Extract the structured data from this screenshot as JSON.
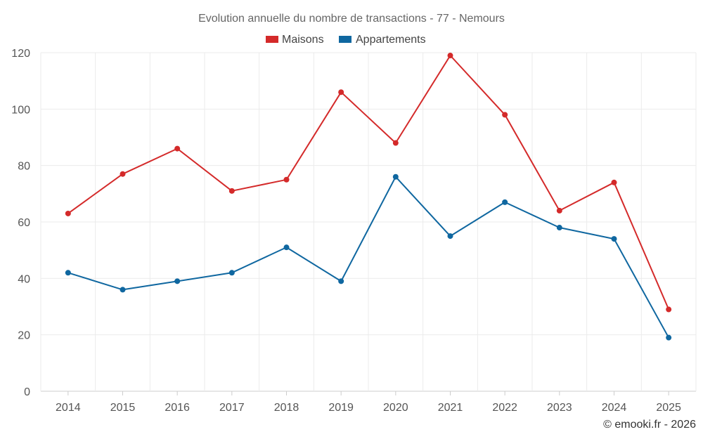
{
  "chart_data": {
    "type": "line",
    "title": "Evolution annuelle du nombre de transactions - 77 - Nemours",
    "categories": [
      "2014",
      "2015",
      "2016",
      "2017",
      "2018",
      "2019",
      "2020",
      "2021",
      "2022",
      "2023",
      "2024",
      "2025"
    ],
    "series": [
      {
        "name": "Maisons",
        "color": "#d42a2a",
        "values": [
          63,
          77,
          86,
          71,
          75,
          106,
          88,
          119,
          98,
          64,
          74,
          29
        ]
      },
      {
        "name": "Appartements",
        "color": "#0f67a0",
        "values": [
          42,
          36,
          39,
          42,
          51,
          39,
          76,
          55,
          67,
          58,
          54,
          19
        ]
      }
    ],
    "ylim": [
      0,
      120
    ],
    "yticks": [
      "0",
      "20",
      "40",
      "60",
      "80",
      "100",
      "120"
    ],
    "xlabel": "",
    "ylabel": "",
    "grid": true,
    "legend": "top-center"
  },
  "credit": "© emooki.fr - 2026"
}
